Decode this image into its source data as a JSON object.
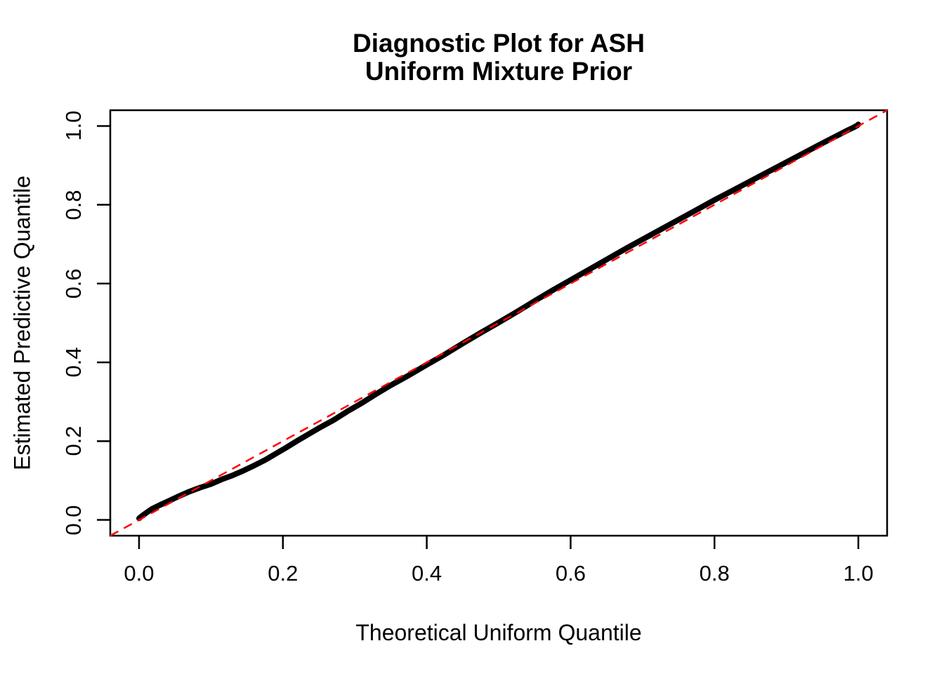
{
  "title": {
    "line1": "Diagnostic Plot for ASH",
    "line2": "Uniform Mixture Prior"
  },
  "colors": {
    "curve": "#000000",
    "reference_line": "#FF0000",
    "axis": "#000000",
    "background": "#FFFFFF",
    "text": "#000000"
  },
  "chart_data": {
    "type": "scatter",
    "subtype": "qq-plot-uniform-diagnostic",
    "title": "Diagnostic Plot for ASH\nUniform Mixture Prior",
    "xlabel": "Theoretical Uniform Quantile",
    "ylabel": "Estimated Predictive Quantile",
    "xlim": [
      -0.04,
      1.04
    ],
    "ylim": [
      -0.04,
      1.04
    ],
    "grid": false,
    "legend": "none",
    "x_ticks": {
      "values": [
        0.0,
        0.2,
        0.4,
        0.6,
        0.8,
        1.0
      ],
      "labels": [
        "0.0",
        "0.2",
        "0.4",
        "0.6",
        "0.8",
        "1.0"
      ]
    },
    "y_ticks": {
      "values": [
        0.0,
        0.2,
        0.4,
        0.6,
        0.8,
        1.0
      ],
      "labels": [
        "0.0",
        "0.2",
        "0.4",
        "0.6",
        "0.8",
        "1.0"
      ]
    },
    "series": [
      {
        "name": "estimated-predictive-quantiles",
        "type": "scatter",
        "marker": "filled-circle",
        "color": "#000000",
        "points": [
          [
            0.0,
            0.004
          ],
          [
            0.004,
            0.01
          ],
          [
            0.01,
            0.018
          ],
          [
            0.018,
            0.028
          ],
          [
            0.028,
            0.037
          ],
          [
            0.04,
            0.047
          ],
          [
            0.055,
            0.06
          ],
          [
            0.07,
            0.072
          ],
          [
            0.085,
            0.082
          ],
          [
            0.1,
            0.091
          ],
          [
            0.115,
            0.103
          ],
          [
            0.13,
            0.113
          ],
          [
            0.145,
            0.125
          ],
          [
            0.16,
            0.138
          ],
          [
            0.175,
            0.152
          ],
          [
            0.19,
            0.168
          ],
          [
            0.205,
            0.184
          ],
          [
            0.22,
            0.201
          ],
          [
            0.235,
            0.217
          ],
          [
            0.25,
            0.233
          ],
          [
            0.27,
            0.253
          ],
          [
            0.29,
            0.276
          ],
          [
            0.31,
            0.297
          ],
          [
            0.33,
            0.32
          ],
          [
            0.35,
            0.342
          ],
          [
            0.375,
            0.367
          ],
          [
            0.4,
            0.394
          ],
          [
            0.425,
            0.42
          ],
          [
            0.45,
            0.448
          ],
          [
            0.475,
            0.475
          ],
          [
            0.5,
            0.501
          ],
          [
            0.525,
            0.528
          ],
          [
            0.55,
            0.556
          ],
          [
            0.575,
            0.583
          ],
          [
            0.6,
            0.609
          ],
          [
            0.625,
            0.635
          ],
          [
            0.65,
            0.661
          ],
          [
            0.675,
            0.687
          ],
          [
            0.7,
            0.712
          ],
          [
            0.725,
            0.737
          ],
          [
            0.75,
            0.762
          ],
          [
            0.775,
            0.787
          ],
          [
            0.8,
            0.812
          ],
          [
            0.825,
            0.836
          ],
          [
            0.85,
            0.86
          ],
          [
            0.875,
            0.884
          ],
          [
            0.9,
            0.908
          ],
          [
            0.925,
            0.932
          ],
          [
            0.95,
            0.956
          ],
          [
            0.97,
            0.975
          ],
          [
            0.985,
            0.989
          ],
          [
            0.993,
            0.996
          ],
          [
            0.998,
            1.001
          ],
          [
            1.0,
            1.004
          ]
        ]
      },
      {
        "name": "reference-line-y-equals-x",
        "type": "line",
        "style": "dashed",
        "color": "#FF0000",
        "points": [
          [
            -0.04,
            -0.04
          ],
          [
            1.04,
            1.04
          ]
        ]
      }
    ]
  }
}
